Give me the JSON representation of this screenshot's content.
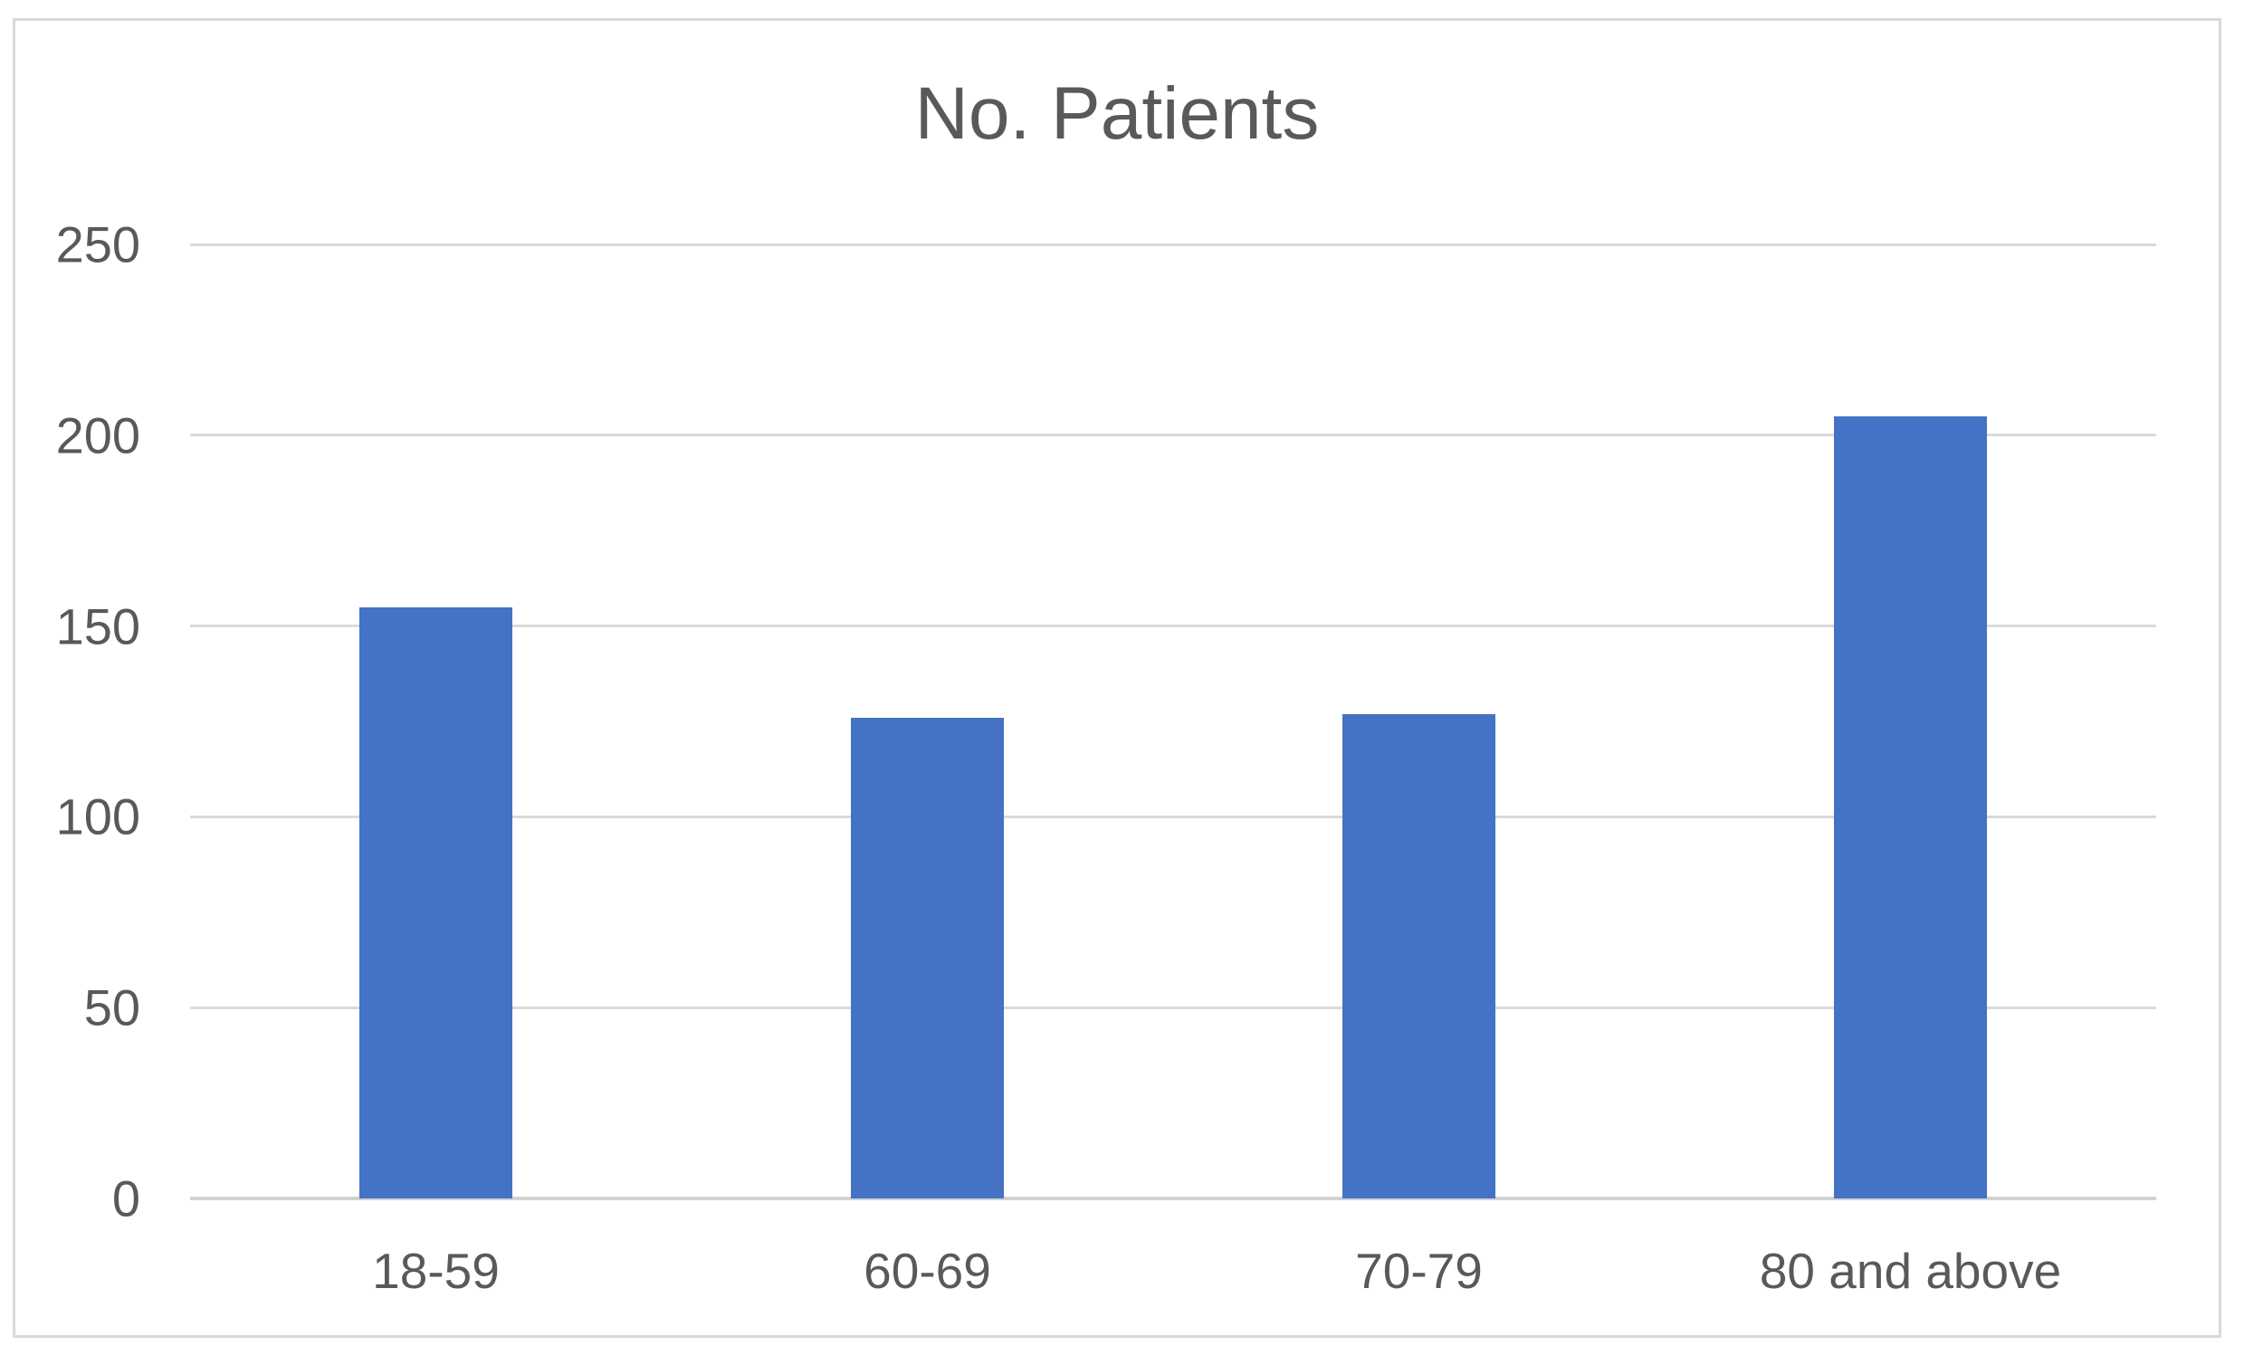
{
  "chart_data": {
    "type": "bar",
    "title": "No. Patients",
    "categories": [
      "18-59",
      "60-69",
      "70-79",
      "80 and above"
    ],
    "values": [
      155,
      126,
      127,
      205
    ],
    "xlabel": "",
    "ylabel": "",
    "ylim": [
      0,
      250
    ],
    "yticks": [
      0,
      50,
      100,
      150,
      200,
      250
    ],
    "grid": "horizontal",
    "legend_position": "none",
    "colors": {
      "bar": "#4472C4",
      "gridline": "#DADADA",
      "axis_line": "#D2D2D2",
      "text": "#595959",
      "frame_border": "#D9D9D9",
      "background": "#FFFFFF"
    }
  }
}
